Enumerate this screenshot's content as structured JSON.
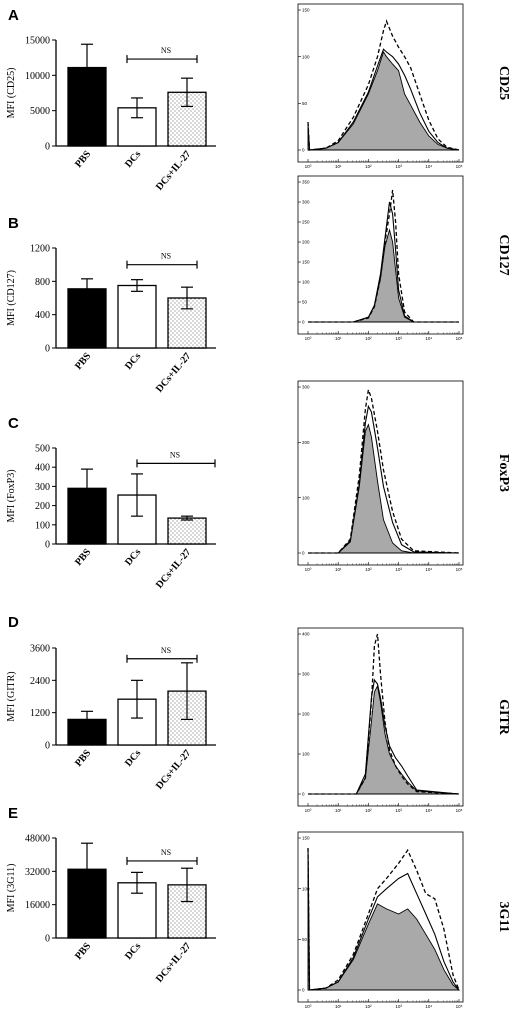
{
  "chart_data": [
    {
      "panel": "A",
      "type": "bar",
      "ylabel": "MFI (CD25)",
      "ylim": [
        0,
        15000
      ],
      "yticks": [
        "0",
        "5000",
        "10000",
        "15000"
      ],
      "categories": [
        "PBS",
        "DCs",
        "DCs+IL-27"
      ],
      "values": [
        11100,
        5400,
        7600
      ],
      "errors": [
        3300,
        1400,
        2000
      ],
      "fills": [
        "solid",
        "hollow",
        "dotted"
      ],
      "significance": {
        "label": "NS",
        "from": 1,
        "to": 2,
        "y": 12300
      }
    },
    {
      "panel": "B",
      "type": "bar",
      "ylabel": "MFI (CD127)",
      "ylim": [
        0,
        1200
      ],
      "yticks": [
        "0",
        "400",
        "800",
        "1200"
      ],
      "categories": [
        "PBS",
        "DCs",
        "DCs+IL-27"
      ],
      "values": [
        710,
        750,
        600
      ],
      "errors": [
        120,
        70,
        130
      ],
      "fills": [
        "solid",
        "hollow",
        "dotted"
      ],
      "significance": {
        "label": "NS",
        "from": 1,
        "to": 2,
        "y": 1000
      }
    },
    {
      "panel": "C",
      "type": "bar",
      "ylabel": "MFI (FoxP3)",
      "ylim": [
        0,
        500
      ],
      "yticks": [
        "0",
        "100",
        "200",
        "300",
        "400",
        "500"
      ],
      "categories": [
        "PBS",
        "DCs",
        "DCs+IL-27"
      ],
      "values": [
        290,
        255,
        135
      ],
      "errors": [
        100,
        110,
        10
      ],
      "fills": [
        "solid",
        "hollow",
        "dotted"
      ],
      "significance": {
        "label": "NS",
        "from": 1,
        "to": 2,
        "y": 420
      }
    },
    {
      "panel": "D",
      "type": "bar",
      "ylabel": "MFI (GITR)",
      "ylim": [
        0,
        3600
      ],
      "yticks": [
        "0",
        "1200",
        "2400",
        "3600"
      ],
      "categories": [
        "PBS",
        "DCs",
        "DCs+IL-27"
      ],
      "values": [
        950,
        1700,
        2000
      ],
      "errors": [
        300,
        700,
        1050
      ],
      "fills": [
        "solid",
        "hollow",
        "dotted"
      ],
      "significance": {
        "label": "NS",
        "from": 1,
        "to": 2,
        "y": 3200
      }
    },
    {
      "panel": "E",
      "type": "bar",
      "ylabel": "MFI (3G11)",
      "ylim": [
        0,
        48000
      ],
      "yticks": [
        "0",
        "16000",
        "32000",
        "48000"
      ],
      "categories": [
        "PBS",
        "DCs",
        "DCs+IL-27"
      ],
      "values": [
        33000,
        26500,
        25500
      ],
      "errors": [
        12500,
        5000,
        8000
      ],
      "fills": [
        "solid",
        "hollow",
        "dotted"
      ],
      "significance": {
        "label": "NS",
        "from": 1,
        "to": 2,
        "y": 37000
      }
    },
    {
      "panel": "A-histogram",
      "type": "area",
      "marker": "CD25",
      "ylim": [
        0,
        150
      ],
      "yticks": [
        "0",
        "50",
        "100",
        "150"
      ],
      "xticks": [
        "10⁰",
        "10¹",
        "10²",
        "10³",
        "10⁴",
        "10⁵"
      ],
      "x": [
        0,
        0.05,
        0.6,
        1.0,
        1.5,
        2.0,
        2.3,
        2.5,
        2.6,
        2.8,
        3.0,
        3.2,
        3.4,
        3.7,
        4.0,
        4.3,
        4.6,
        5.0
      ],
      "series": [
        {
          "style": "filled",
          "values": [
            25,
            0,
            2,
            8,
            28,
            60,
            85,
            105,
            100,
            92,
            85,
            60,
            48,
            30,
            15,
            6,
            2,
            0
          ]
        },
        {
          "style": "solid",
          "values": [
            28,
            0,
            2,
            8,
            30,
            62,
            90,
            108,
            105,
            100,
            92,
            80,
            65,
            40,
            20,
            8,
            2,
            0
          ]
        },
        {
          "style": "dashed",
          "values": [
            30,
            0,
            2,
            10,
            35,
            70,
            100,
            128,
            138,
            122,
            110,
            100,
            88,
            60,
            32,
            12,
            3,
            0
          ]
        }
      ]
    },
    {
      "panel": "B-histogram",
      "type": "area",
      "marker": "CD127",
      "ylim": [
        0,
        350
      ],
      "yticks": [
        "0",
        "50",
        "100",
        "150",
        "200",
        "250",
        "300",
        "350"
      ],
      "xticks": [
        "10⁰",
        "10¹",
        "10²",
        "10³",
        "10⁴",
        "10⁵"
      ],
      "x": [
        0,
        1.5,
        2.0,
        2.2,
        2.4,
        2.55,
        2.7,
        2.8,
        2.9,
        3.0,
        3.2,
        3.5,
        5.0
      ],
      "series": [
        {
          "style": "filled",
          "values": [
            0,
            0,
            12,
            40,
            110,
            190,
            230,
            200,
            130,
            60,
            12,
            0,
            0
          ]
        },
        {
          "style": "solid",
          "values": [
            0,
            0,
            12,
            42,
            120,
            210,
            300,
            270,
            180,
            80,
            15,
            0,
            0
          ]
        },
        {
          "style": "dashed",
          "values": [
            0,
            0,
            10,
            38,
            110,
            200,
            270,
            330,
            250,
            120,
            25,
            0,
            0
          ]
        }
      ]
    },
    {
      "panel": "C-histogram",
      "type": "area",
      "marker": "FoxP3",
      "ylim": [
        0,
        300
      ],
      "yticks": [
        "0",
        "100",
        "200",
        "300"
      ],
      "xticks": [
        "10⁰",
        "10¹",
        "10²",
        "10³",
        "10⁴",
        "10⁵"
      ],
      "x": [
        0,
        1.0,
        1.4,
        1.7,
        1.9,
        2.0,
        2.1,
        2.3,
        2.5,
        2.8,
        3.1,
        3.5,
        5.0
      ],
      "series": [
        {
          "style": "filled",
          "values": [
            0,
            0,
            20,
            120,
            220,
            232,
            210,
            130,
            60,
            18,
            4,
            0,
            0
          ]
        },
        {
          "style": "solid",
          "values": [
            0,
            0,
            22,
            125,
            235,
            265,
            255,
            190,
            120,
            55,
            15,
            2,
            0
          ]
        },
        {
          "style": "dashed",
          "values": [
            0,
            0,
            25,
            140,
            260,
            295,
            280,
            220,
            150,
            75,
            25,
            4,
            0
          ]
        }
      ]
    },
    {
      "panel": "D-histogram",
      "type": "area",
      "marker": "GITR",
      "ylim": [
        0,
        400
      ],
      "yticks": [
        "0",
        "100",
        "200",
        "300",
        "400"
      ],
      "xticks": [
        "10⁰",
        "10¹",
        "10²",
        "10³",
        "10⁴",
        "10⁵"
      ],
      "x": [
        0,
        1.6,
        1.9,
        2.1,
        2.2,
        2.3,
        2.4,
        2.55,
        2.7,
        2.9,
        3.1,
        3.3,
        3.6,
        5.0
      ],
      "series": [
        {
          "style": "filled",
          "values": [
            0,
            0,
            40,
            180,
            255,
            270,
            230,
            150,
            100,
            70,
            50,
            30,
            8,
            0
          ]
        },
        {
          "style": "solid",
          "values": [
            0,
            0,
            50,
            240,
            285,
            275,
            240,
            170,
            120,
            90,
            70,
            45,
            10,
            0
          ]
        },
        {
          "style": "dashed",
          "values": [
            0,
            0,
            40,
            230,
            370,
            400,
            300,
            180,
            110,
            70,
            45,
            25,
            6,
            0
          ]
        }
      ]
    },
    {
      "panel": "E-histogram",
      "type": "area",
      "marker": "3G11",
      "ylim": [
        0,
        150
      ],
      "yticks": [
        "0",
        "50",
        "100",
        "150"
      ],
      "xticks": [
        "10⁰",
        "10¹",
        "10²",
        "10³",
        "10⁴",
        "10⁵"
      ],
      "x": [
        0,
        0.05,
        0.6,
        1.0,
        1.5,
        2.0,
        2.3,
        2.6,
        3.0,
        3.3,
        3.6,
        3.9,
        4.2,
        4.5,
        4.8,
        5.0
      ],
      "series": [
        {
          "style": "filled",
          "values": [
            140,
            0,
            2,
            8,
            30,
            65,
            85,
            80,
            75,
            80,
            70,
            55,
            40,
            20,
            5,
            0
          ]
        },
        {
          "style": "solid",
          "values": [
            140,
            0,
            2,
            8,
            32,
            70,
            92,
            100,
            110,
            115,
            95,
            75,
            55,
            28,
            8,
            0
          ]
        },
        {
          "style": "dashed",
          "values": [
            140,
            0,
            2,
            10,
            35,
            75,
            100,
            110,
            125,
            138,
            118,
            95,
            90,
            60,
            15,
            0
          ]
        }
      ]
    }
  ]
}
